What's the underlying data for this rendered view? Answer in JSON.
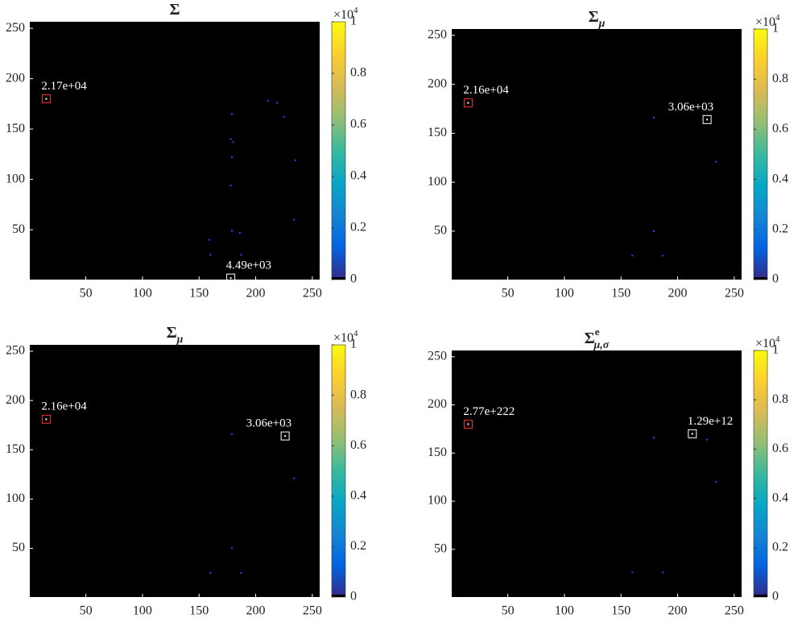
{
  "chart_data": [
    {
      "type": "heatmap",
      "title": "Σ",
      "xlim": [
        0.5,
        256.5
      ],
      "ylim": [
        0.5,
        256.5
      ],
      "xticks": [
        50,
        100,
        150,
        200,
        250
      ],
      "yticks": [
        50,
        100,
        150,
        200,
        250
      ],
      "series": [
        {
          "color": "#3c3cff",
          "x": [
            179,
            178,
            180,
            179,
            178,
            211,
            219,
            225,
            235,
            234,
            179,
            186,
            159,
            160,
            187
          ],
          "y": [
            165,
            140,
            137,
            122,
            94,
            178,
            176,
            162,
            119,
            60,
            49,
            47,
            40,
            25,
            25
          ]
        }
      ],
      "annotations": [
        {
          "x": 15,
          "y": 180,
          "label": "2.17e+04",
          "box_color": "#ff3030",
          "align": "left"
        },
        {
          "x": 178,
          "y": 2,
          "label": "4.49e+03",
          "box_color": "#ffffff",
          "align": "left"
        }
      ],
      "colorbar": {
        "lim": [
          0,
          1
        ],
        "ticks": [
          0,
          0.2,
          0.4,
          0.6,
          0.8,
          1
        ],
        "label": "×10",
        "label_sup": "4"
      }
    },
    {
      "type": "heatmap",
      "title": "Σ",
      "title_sub": "μ",
      "xlim": [
        0.5,
        256.5
      ],
      "ylim": [
        0.5,
        256.5
      ],
      "xticks": [
        50,
        100,
        150,
        200,
        250
      ],
      "yticks": [
        50,
        100,
        150,
        200,
        250
      ],
      "series": [
        {
          "color": "#3c3cff",
          "x": [
            179,
            234,
            179,
            160,
            187
          ],
          "y": [
            166,
            121,
            50,
            25,
            25
          ]
        }
      ],
      "annotations": [
        {
          "x": 15,
          "y": 181,
          "label": "2.16e+04",
          "box_color": "#ff3030",
          "align": "left"
        },
        {
          "x": 226,
          "y": 164,
          "label": "3.06e+03",
          "box_color": "#ffffff",
          "align": "right"
        }
      ],
      "colorbar": {
        "lim": [
          0,
          1
        ],
        "ticks": [
          0,
          0.2,
          0.4,
          0.6,
          0.8,
          1
        ],
        "label": "×10",
        "label_sup": "4"
      }
    },
    {
      "type": "heatmap",
      "title": "Σ",
      "title_sub": "μ",
      "xlim": [
        0.5,
        256.5
      ],
      "ylim": [
        0.5,
        256.5
      ],
      "xticks": [
        50,
        100,
        150,
        200,
        250
      ],
      "yticks": [
        50,
        100,
        150,
        200,
        250
      ],
      "series": [
        {
          "color": "#3c3cff",
          "x": [
            179,
            234,
            179,
            160,
            187
          ],
          "y": [
            166,
            121,
            50,
            25,
            25
          ]
        }
      ],
      "annotations": [
        {
          "x": 15,
          "y": 181,
          "label": "2.16e+04",
          "box_color": "#ff3030",
          "align": "left"
        },
        {
          "x": 226,
          "y": 164,
          "label": "3.06e+03",
          "box_color": "#ffffff",
          "align": "right"
        }
      ],
      "colorbar": {
        "lim": [
          0,
          1
        ],
        "ticks": [
          0,
          0.2,
          0.4,
          0.6,
          0.8,
          1
        ],
        "label": "×10",
        "label_sup": "4"
      }
    },
    {
      "type": "heatmap",
      "title": "Σ",
      "title_sub": "μ,σ",
      "title_sup": "e",
      "xlim": [
        0.5,
        256.5
      ],
      "ylim": [
        0.5,
        256.5
      ],
      "xticks": [
        50,
        100,
        150,
        200,
        250
      ],
      "yticks": [
        50,
        100,
        150,
        200,
        250
      ],
      "series": [
        {
          "color": "#3c3cff",
          "x": [
            179,
            226,
            234,
            160,
            187
          ],
          "y": [
            166,
            164,
            120,
            26,
            26
          ]
        }
      ],
      "annotations": [
        {
          "x": 15,
          "y": 180,
          "label": "2.77e+222",
          "box_color": "#ff3030",
          "align": "left"
        },
        {
          "x": 213,
          "y": 170,
          "label": "1.29e+12",
          "box_color": "#ffffff",
          "align": "left"
        }
      ],
      "colorbar": {
        "lim": [
          0,
          1
        ],
        "ticks": [
          0,
          0.2,
          0.4,
          0.6,
          0.8,
          1
        ],
        "label": "×10",
        "label_sup": "4"
      }
    }
  ]
}
